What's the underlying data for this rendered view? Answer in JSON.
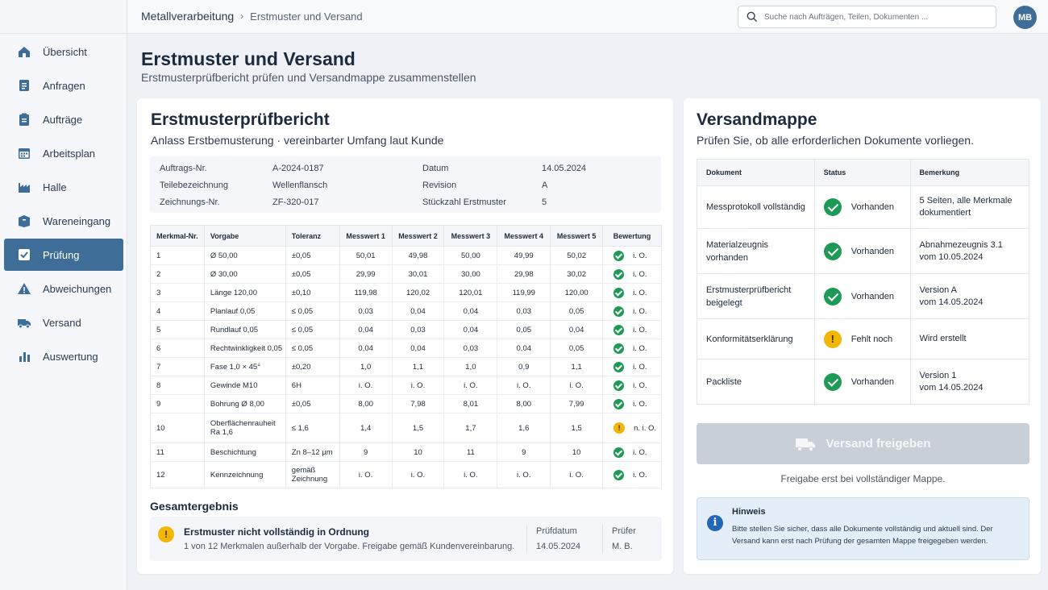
{
  "breadcrumb": {
    "root": "Metallverarbeitung",
    "current": "Erstmuster und Versand"
  },
  "search": {
    "placeholder": "Suche nach Aufträgen, Teilen, Dokumenten ..."
  },
  "user": {
    "initials": "MB"
  },
  "sidebar": {
    "items": [
      {
        "label": "Übersicht",
        "icon": "home-icon"
      },
      {
        "label": "Anfragen",
        "icon": "document-icon"
      },
      {
        "label": "Aufträge",
        "icon": "clipboard-icon"
      },
      {
        "label": "Arbeitsplan",
        "icon": "calendar-icon"
      },
      {
        "label": "Halle",
        "icon": "factory-icon"
      },
      {
        "label": "Wareneingang",
        "icon": "box-icon"
      },
      {
        "label": "Prüfung",
        "icon": "checkbox-icon",
        "active": true
      },
      {
        "label": "Abweichungen",
        "icon": "warning-icon"
      },
      {
        "label": "Versand",
        "icon": "truck-icon"
      },
      {
        "label": "Auswertung",
        "icon": "bar-chart-icon"
      }
    ]
  },
  "page": {
    "title": "Erstmuster und Versand",
    "subtitle": "Erstmusterprüfbericht prüfen und Versandmappe zusammenstellen"
  },
  "report": {
    "title": "Erstmusterprüfbericht",
    "subtitle": "Anlass Erstbemusterung · vereinbarter Umfang laut Kunde",
    "info": {
      "order_label": "Auftrags-Nr.",
      "order_value": "A-2024-0187",
      "part_label": "Teilebezeichnung",
      "part_value": "Wellenflansch",
      "drawing_label": "Zeichnungs-Nr.",
      "drawing_value": "ZF-320-017",
      "date_label": "Datum",
      "date_value": "14.05.2024",
      "revision_label": "Revision",
      "revision_value": "A",
      "qty_label": "Stückzahl Erstmuster",
      "qty_value": "5"
    },
    "columns": [
      "Merkmal-Nr.",
      "Vorgabe",
      "Toleranz",
      "Messwert 1",
      "Messwert 2",
      "Messwert 3",
      "Messwert 4",
      "Messwert 5",
      "Bewertung"
    ],
    "rows": [
      {
        "nr": "1",
        "spec": "Ø 50,00",
        "tol": "±0,05",
        "m": [
          "50,01",
          "49,98",
          "50,00",
          "49,99",
          "50,02"
        ],
        "eval": "i. O.",
        "status": "ok"
      },
      {
        "nr": "2",
        "spec": "Ø 30,00",
        "tol": "±0,05",
        "m": [
          "29,99",
          "30,01",
          "30,00",
          "29,98",
          "30,02"
        ],
        "eval": "i. O.",
        "status": "ok"
      },
      {
        "nr": "3",
        "spec": "Länge 120,00",
        "tol": "±0,10",
        "m": [
          "119,98",
          "120,02",
          "120,01",
          "119,99",
          "120,00"
        ],
        "eval": "i. O.",
        "status": "ok"
      },
      {
        "nr": "4",
        "spec": "Planlauf 0,05",
        "tol": "≤ 0,05",
        "m": [
          "0,03",
          "0,04",
          "0,04",
          "0,03",
          "0,05"
        ],
        "eval": "i. O.",
        "status": "ok"
      },
      {
        "nr": "5",
        "spec": "Rundlauf 0,05",
        "tol": "≤ 0,05",
        "m": [
          "0,04",
          "0,03",
          "0,04",
          "0,05",
          "0,04"
        ],
        "eval": "i. O.",
        "status": "ok"
      },
      {
        "nr": "6",
        "spec": "Rechtwinkligkeit 0,05",
        "tol": "≤ 0,05",
        "m": [
          "0,04",
          "0,04",
          "0,03",
          "0,04",
          "0,05"
        ],
        "eval": "i. O.",
        "status": "ok"
      },
      {
        "nr": "7",
        "spec": "Fase 1,0 × 45°",
        "tol": "±0,20",
        "m": [
          "1,0",
          "1,1",
          "1,0",
          "0,9",
          "1,1"
        ],
        "eval": "i. O.",
        "status": "ok"
      },
      {
        "nr": "8",
        "spec": "Gewinde M10",
        "tol": "6H",
        "m": [
          "i. O.",
          "i. O.",
          "i. O.",
          "i. O.",
          "i. O."
        ],
        "eval": "i. O.",
        "status": "ok"
      },
      {
        "nr": "9",
        "spec": "Bohrung Ø 8,00",
        "tol": "±0,05",
        "m": [
          "8,00",
          "7,98",
          "8,01",
          "8,00",
          "7,99"
        ],
        "eval": "i. O.",
        "status": "ok"
      },
      {
        "nr": "10",
        "spec": "Oberflächenrauheit Ra 1,6",
        "tol": "≤ 1,6",
        "m": [
          "1,4",
          "1,5",
          "1,7",
          "1,6",
          "1,5"
        ],
        "eval": "n. i. O.",
        "status": "warn"
      },
      {
        "nr": "11",
        "spec": "Beschichtung",
        "tol": "Zn 8–12 µm",
        "m": [
          "9",
          "10",
          "11",
          "9",
          "10"
        ],
        "eval": "i. O.",
        "status": "ok"
      },
      {
        "nr": "12",
        "spec": "Kennzeichnung",
        "tol": "gemäß Zeichnung",
        "m": [
          "i. O.",
          "i. O.",
          "i. O.",
          "i. O.",
          "i. O."
        ],
        "eval": "i. O.",
        "status": "ok"
      }
    ],
    "result": {
      "title": "Gesamtergebnis",
      "main": "Erstmuster nicht vollständig in Ordnung",
      "detail": "1 von 12 Merkmalen außerhalb der Vorgabe. Freigabe gemäß Kundenvereinbarung.",
      "date_label": "Prüfdatum",
      "date_value": "14.05.2024",
      "inspector_label": "Prüfer",
      "inspector_value": "M. B."
    }
  },
  "dispatch": {
    "title": "Versandmappe",
    "subtitle": "Prüfen Sie, ob alle erforderlichen Dokumente vorliegen.",
    "columns": [
      "Dokument",
      "Status",
      "Bemerkung"
    ],
    "rows": [
      {
        "doc": "Messprotokoll vollständig",
        "status": "Vorhanden",
        "state": "ok",
        "note1": "5 Seiten, alle Merkmale",
        "note2": "dokumentiert"
      },
      {
        "doc": "Materialzeugnis vorhanden",
        "status": "Vorhanden",
        "state": "ok",
        "note1": "Abnahmezeugnis 3.1",
        "note2": "vom 10.05.2024"
      },
      {
        "doc": "Erstmusterprüfbericht beigelegt",
        "status": "Vorhanden",
        "state": "ok",
        "note1": "Version A",
        "note2": "vom 14.05.2024"
      },
      {
        "doc": "Konformitätserklärung",
        "status": "Fehlt noch",
        "state": "warn",
        "note1": "Wird erstellt",
        "note2": ""
      },
      {
        "doc": "Packliste",
        "status": "Vorhanden",
        "state": "ok",
        "note1": "Version 1",
        "note2": "vom 14.05.2024"
      }
    ],
    "release_button": "Versand freigeben",
    "release_note": "Freigabe erst bei vollständiger Mappe.",
    "hint_title": "Hinweis",
    "hint_text": "Bitte stellen Sie sicher, dass alle Dokumente vollständig und aktuell sind. Der Versand kann erst nach Prüfung der gesamten Mappe freigegeben werden."
  },
  "colors": {
    "accent": "#3e6d98",
    "ok": "#1e9a57",
    "warn": "#f2b705",
    "info": "#2366b3"
  }
}
